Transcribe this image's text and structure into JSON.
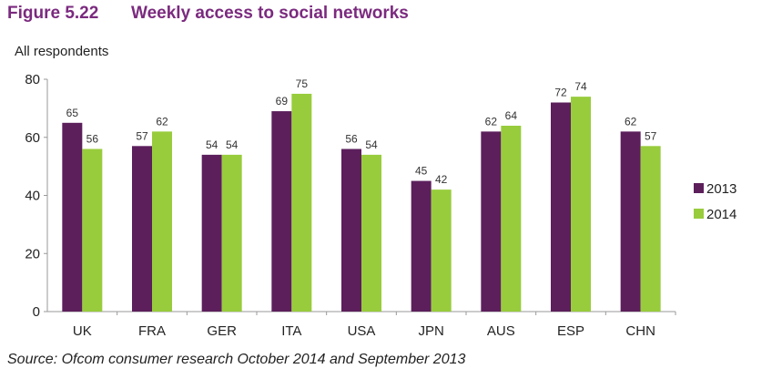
{
  "figure": {
    "number": "Figure 5.22",
    "title": "Weekly access to social networks"
  },
  "source": "Source: Ofcom consumer research October 2014 and September 2013",
  "colors": {
    "s2013": "#5c1f5c",
    "s2014": "#98cc3c",
    "title": "#7b2a7f",
    "axis": "#999999"
  },
  "chart_data": {
    "type": "bar",
    "title": "Weekly access to social networks",
    "ylabel": "All respondents",
    "xlabel": "",
    "ylim": [
      0,
      80
    ],
    "yticks": [
      0,
      20,
      40,
      60,
      80
    ],
    "grid": false,
    "legend": "right",
    "categories": [
      "UK",
      "FRA",
      "GER",
      "ITA",
      "USA",
      "JPN",
      "AUS",
      "ESP",
      "CHN"
    ],
    "series": [
      {
        "name": "2013",
        "values": [
          65,
          57,
          54,
          69,
          56,
          45,
          62,
          72,
          62
        ]
      },
      {
        "name": "2014",
        "values": [
          56,
          62,
          54,
          75,
          54,
          42,
          64,
          74,
          57
        ]
      }
    ]
  }
}
